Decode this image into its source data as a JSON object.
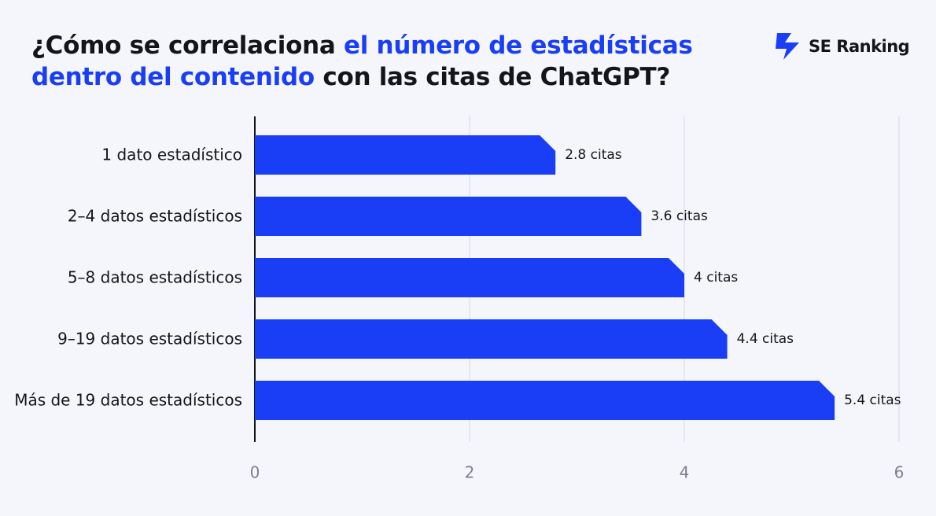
{
  "logo": {
    "text": "SE Ranking"
  },
  "chart_data": {
    "type": "hbar",
    "title_parts": [
      {
        "text": "¿Cómo se correlaciona ",
        "color": "#14151a"
      },
      {
        "text": "el número de estadísticas dentro del contenido",
        "color": "#1a3ef5"
      },
      {
        "text": " con las citas de ChatGPT?",
        "color": "#14151a"
      }
    ],
    "categories": [
      "1 dato estadístico",
      "2–4 datos estadísticos",
      "5–8 datos estadísticos",
      "9–19 datos estadísticos",
      "Más de 19 datos estadísticos"
    ],
    "values": [
      2.8,
      3.6,
      4,
      4.4,
      5.4
    ],
    "value_labels": [
      "2.8 citas",
      "3.6 citas",
      "4 citas",
      "4.4 citas",
      "5.4 citas"
    ],
    "color": "#1a3ef5",
    "xlim": [
      0,
      6
    ],
    "xticks": [
      0,
      2,
      4,
      6
    ],
    "grid": true
  }
}
